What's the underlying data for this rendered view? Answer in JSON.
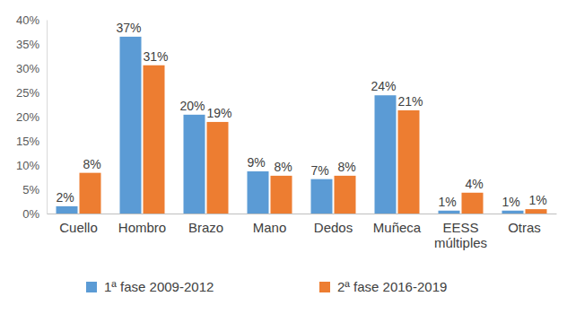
{
  "chart_data": {
    "type": "bar",
    "categories": [
      "Cuello",
      "Hombro",
      "Brazo",
      "Mano",
      "Dedos",
      "Muñeca",
      "EESS múltiples",
      "Otras"
    ],
    "series": [
      {
        "name": "1ª fase 2009-2012",
        "color": "#5b9bd5",
        "values": [
          1.5,
          36.5,
          20.4,
          8.7,
          7.1,
          24.4,
          0.6,
          0.6
        ],
        "value_labels": [
          "2%",
          "37%",
          "20%",
          "9%",
          "7%",
          "24%",
          "1%",
          "1%"
        ]
      },
      {
        "name": "2ª fase 2016-2019",
        "color": "#ed7d31",
        "values": [
          8.4,
          30.6,
          18.9,
          7.8,
          7.8,
          21.3,
          4.3,
          0.9
        ],
        "value_labels": [
          "8%",
          "31%",
          "19%",
          "8%",
          "8%",
          "21%",
          "4%",
          "1%"
        ]
      }
    ],
    "ylim": [
      0,
      40
    ],
    "yticks": [
      {
        "value": 0,
        "label": "0%"
      },
      {
        "value": 5,
        "label": "5%"
      },
      {
        "value": 10,
        "label": "10%"
      },
      {
        "value": 15,
        "label": "15%"
      },
      {
        "value": 20,
        "label": "20%"
      },
      {
        "value": 25,
        "label": "25%"
      },
      {
        "value": 30,
        "label": "30%"
      },
      {
        "value": 35,
        "label": "35%"
      },
      {
        "value": 40,
        "label": "40%"
      }
    ],
    "grid": false,
    "data_labels": true,
    "legend": "bottom"
  }
}
